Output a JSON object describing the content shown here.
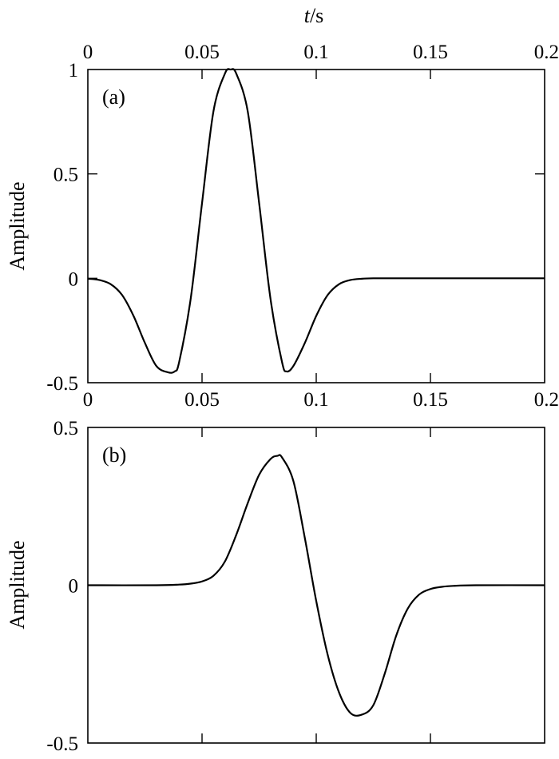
{
  "chart_data": [
    {
      "type": "line",
      "panel_label": "(a)",
      "xlabel_italic": "t",
      "xlabel_unit": "/s",
      "ylabel": "Amplitude",
      "xlim": [
        0,
        0.2
      ],
      "ylim": [
        -0.5,
        1
      ],
      "x_ticks": [
        0,
        0.05,
        0.1,
        0.15,
        0.2
      ],
      "x_tick_labels_top": [
        "0",
        "0.05",
        "0.1",
        "0.15",
        "0.2"
      ],
      "x_tick_labels_bottom": [
        "0",
        "0.05",
        "0.1",
        "0.15",
        "0.2"
      ],
      "y_ticks": [
        -0.5,
        0,
        0.5,
        1
      ],
      "y_tick_labels": [
        "-0.5",
        "0",
        "0.5",
        "1"
      ],
      "grid": false,
      "series": [
        {
          "x": [
            0,
            0.005,
            0.01,
            0.015,
            0.02,
            0.025,
            0.03,
            0.035,
            0.038,
            0.04,
            0.045,
            0.05,
            0.055,
            0.06,
            0.0625,
            0.065,
            0.07,
            0.075,
            0.08,
            0.085,
            0.087,
            0.09,
            0.095,
            0.1,
            0.105,
            0.11,
            0.115,
            0.12,
            0.125,
            0.13,
            0.14,
            0.15,
            0.16,
            0.17,
            0.18,
            0.19,
            0.2
          ],
          "y": [
            -0.002,
            -0.008,
            -0.028,
            -0.08,
            -0.18,
            -0.31,
            -0.42,
            -0.45,
            -0.446,
            -0.4,
            -0.1,
            0.36,
            0.8,
            0.98,
            1.0,
            0.98,
            0.8,
            0.36,
            -0.1,
            -0.4,
            -0.446,
            -0.42,
            -0.31,
            -0.18,
            -0.08,
            -0.028,
            -0.008,
            -0.002,
            0,
            0,
            0,
            0,
            0,
            0,
            0,
            0,
            0
          ]
        }
      ]
    },
    {
      "type": "line",
      "panel_label": "(b)",
      "ylabel": "Amplitude",
      "xlim": [
        0,
        0.2
      ],
      "ylim": [
        -0.5,
        0.5
      ],
      "x_ticks": [
        0,
        0.05,
        0.1,
        0.15,
        0.2
      ],
      "y_ticks": [
        -0.5,
        0,
        0.5
      ],
      "y_tick_labels": [
        "-0.5",
        "0",
        "0.5"
      ],
      "grid": false,
      "series": [
        {
          "x": [
            0,
            0.03,
            0.04,
            0.045,
            0.05,
            0.055,
            0.06,
            0.065,
            0.07,
            0.075,
            0.08,
            0.083,
            0.085,
            0.09,
            0.095,
            0.1,
            0.105,
            0.11,
            0.115,
            0.12,
            0.125,
            0.13,
            0.135,
            0.14,
            0.145,
            0.15,
            0.155,
            0.16,
            0.17,
            0.2
          ],
          "y": [
            0,
            0,
            0.002,
            0.005,
            0.012,
            0.03,
            0.075,
            0.16,
            0.26,
            0.35,
            0.4,
            0.41,
            0.405,
            0.33,
            0.15,
            -0.05,
            -0.22,
            -0.34,
            -0.405,
            -0.41,
            -0.38,
            -0.28,
            -0.16,
            -0.075,
            -0.03,
            -0.012,
            -0.005,
            -0.002,
            0,
            0
          ]
        }
      ]
    }
  ]
}
